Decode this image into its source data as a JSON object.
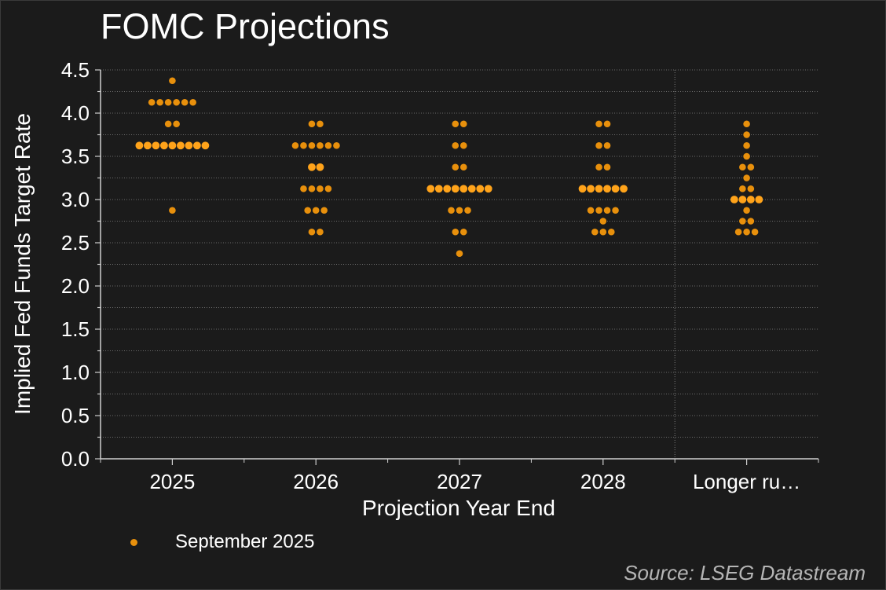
{
  "chart_data": {
    "type": "scatter",
    "title": "FOMC Projections",
    "xlabel": "Projection Year End",
    "ylabel": "Implied Fed Funds Target Rate",
    "categories": [
      "2025",
      "2026",
      "2027",
      "2028",
      "Longer ru…"
    ],
    "ylim": [
      0,
      4.5
    ],
    "yticks": [
      "0.0",
      "0.5",
      "1.0",
      "1.5",
      "2.0",
      "2.5",
      "3.0",
      "3.5",
      "4.0",
      "4.5"
    ],
    "grid": true,
    "legend_position": "bottom-left",
    "series": [
      {
        "name": "September 2025",
        "color": "#e8900c",
        "median_color": "#ffa31a",
        "dots": [
          [
            {
              "y": 4.375,
              "n": 1
            },
            {
              "y": 4.125,
              "n": 6
            },
            {
              "y": 3.875,
              "n": 2
            },
            {
              "y": 3.625,
              "n": 9
            },
            {
              "y": 2.875,
              "n": 1
            }
          ],
          [
            {
              "y": 3.875,
              "n": 2
            },
            {
              "y": 3.625,
              "n": 6
            },
            {
              "y": 3.375,
              "n": 2
            },
            {
              "y": 3.125,
              "n": 4
            },
            {
              "y": 2.875,
              "n": 3
            },
            {
              "y": 2.625,
              "n": 2
            }
          ],
          [
            {
              "y": 3.875,
              "n": 2
            },
            {
              "y": 3.625,
              "n": 2
            },
            {
              "y": 3.375,
              "n": 2
            },
            {
              "y": 3.125,
              "n": 8
            },
            {
              "y": 2.875,
              "n": 3
            },
            {
              "y": 2.625,
              "n": 2
            },
            {
              "y": 2.375,
              "n": 1
            }
          ],
          [
            {
              "y": 3.875,
              "n": 2
            },
            {
              "y": 3.625,
              "n": 2
            },
            {
              "y": 3.375,
              "n": 2
            },
            {
              "y": 3.125,
              "n": 6
            },
            {
              "y": 2.875,
              "n": 4
            },
            {
              "y": 2.75,
              "n": 1
            },
            {
              "y": 2.625,
              "n": 3
            }
          ],
          [
            {
              "y": 3.875,
              "n": 1
            },
            {
              "y": 3.75,
              "n": 1
            },
            {
              "y": 3.625,
              "n": 1
            },
            {
              "y": 3.5,
              "n": 1
            },
            {
              "y": 3.375,
              "n": 2
            },
            {
              "y": 3.25,
              "n": 1
            },
            {
              "y": 3.125,
              "n": 2
            },
            {
              "y": 3.0,
              "n": 4
            },
            {
              "y": 2.875,
              "n": 1
            },
            {
              "y": 2.75,
              "n": 2
            },
            {
              "y": 2.625,
              "n": 3
            }
          ]
        ],
        "medians": [
          3.625,
          3.375,
          3.125,
          3.125,
          3.0
        ]
      }
    ]
  },
  "source": "Source: LSEG Datastream"
}
